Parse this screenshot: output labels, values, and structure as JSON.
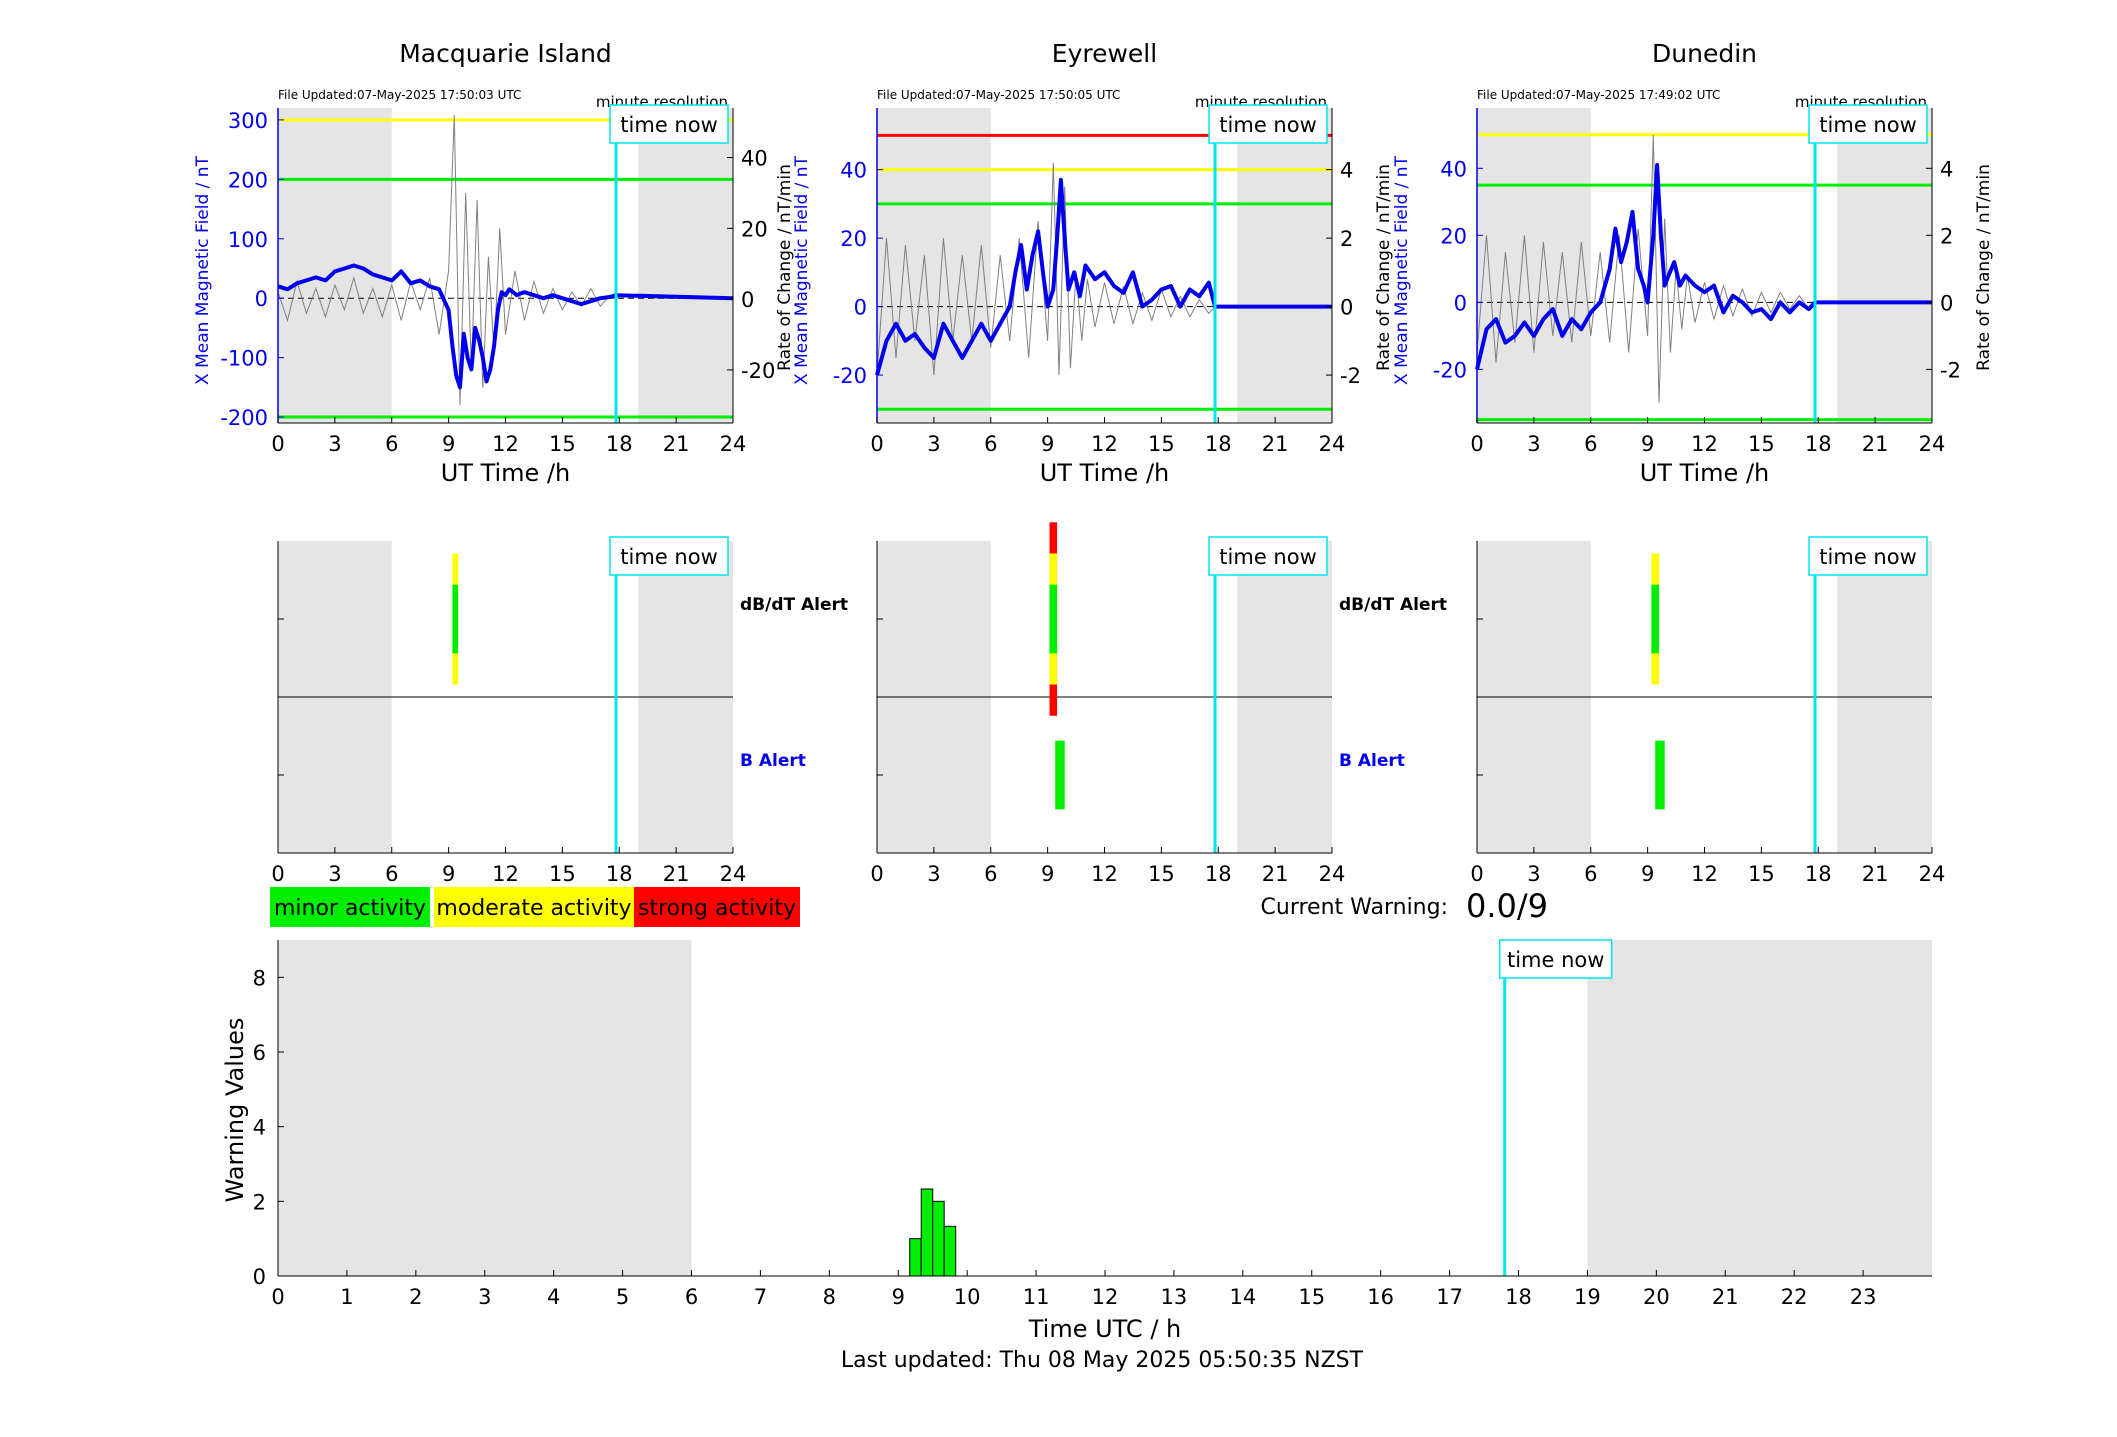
{
  "page": {
    "current_warning_label": "Current Warning:",
    "current_warning_value": "0.0/9",
    "last_updated": "Last updated: Thu 08 May 2025 05:50:35 NZST",
    "legend": [
      {
        "label": "minor activity",
        "color": "#00ee00"
      },
      {
        "label": "moderate activity",
        "color": "#ffff00"
      },
      {
        "label": "strong activity",
        "color": "#ff0000"
      }
    ],
    "time_now_label": "time now",
    "colors": {
      "field_line": "#0000ee",
      "rate_line": "#808080",
      "time_now": "#00e5ee",
      "shade": "#e5e5e5",
      "minor": "#00ee00",
      "moderate": "#ffff00",
      "strong": "#ff0000"
    }
  },
  "chart_data": [
    {
      "type": "line",
      "panel": "field",
      "station": "Macquarie Island",
      "title": "Macquarie Island",
      "file_updated": "File Updated:07-May-2025 17:50:03 UTC",
      "resolution": "minute resolution",
      "xlabel": "UT Time /h",
      "xlim": [
        0,
        24
      ],
      "xticks": [
        "0",
        "3",
        "6",
        "9",
        "12",
        "15",
        "18",
        "21",
        "24"
      ],
      "ylabel": "X Mean Magnetic Field / nT",
      "ylim": [
        -210,
        320
      ],
      "yticks": [
        "-200",
        "-100",
        "0",
        "100",
        "200",
        "300"
      ],
      "y2label": "Rate of Change / nT/min",
      "y2lim": [
        -35,
        54
      ],
      "y2ticks": [
        "-20",
        "0",
        "20",
        "40"
      ],
      "thresholds": [
        {
          "value": 300,
          "color": "#ffff00"
        },
        {
          "value": 200,
          "color": "#00ee00"
        },
        {
          "value": -200,
          "color": "#00ee00"
        }
      ],
      "shading": [
        [
          0,
          6
        ],
        [
          19,
          24
        ]
      ],
      "time_now": 17.83,
      "field_series": {
        "x": [
          0,
          0.5,
          1,
          1.5,
          2,
          2.5,
          3,
          3.5,
          4,
          4.5,
          5,
          5.5,
          6,
          6.5,
          7,
          7.5,
          8,
          8.5,
          9,
          9.2,
          9.4,
          9.6,
          9.8,
          10,
          10.2,
          10.4,
          10.6,
          10.8,
          11,
          11.2,
          11.4,
          11.6,
          11.8,
          12,
          12.2,
          12.4,
          12.6,
          12.8,
          13,
          13.5,
          14,
          14.5,
          15,
          15.5,
          16,
          16.5,
          17,
          17.5,
          17.83,
          24
        ],
        "y": [
          20,
          15,
          25,
          30,
          35,
          30,
          45,
          50,
          55,
          50,
          40,
          35,
          30,
          45,
          25,
          30,
          20,
          15,
          -20,
          -80,
          -130,
          -150,
          -60,
          -100,
          -120,
          -50,
          -70,
          -100,
          -140,
          -120,
          -80,
          -20,
          10,
          5,
          15,
          10,
          5,
          8,
          10,
          5,
          0,
          5,
          0,
          -5,
          -10,
          -5,
          0,
          2,
          5,
          0
        ]
      },
      "rate_series": {
        "x": [
          0,
          0.5,
          1,
          1.5,
          2,
          2.5,
          3,
          3.5,
          4,
          4.5,
          5,
          5.5,
          6,
          6.5,
          7,
          7.5,
          8,
          8.5,
          9,
          9.3,
          9.6,
          9.9,
          10.2,
          10.5,
          10.8,
          11.1,
          11.4,
          11.7,
          12,
          12.5,
          13,
          13.5,
          14,
          14.5,
          15,
          15.5,
          16,
          16.5,
          17,
          17.5,
          17.83
        ],
        "y": [
          2,
          -6,
          5,
          -4,
          3,
          -5,
          4,
          -3,
          6,
          -4,
          3,
          -5,
          4,
          -6,
          5,
          -3,
          6,
          -10,
          8,
          52,
          -30,
          30,
          -20,
          28,
          -25,
          12,
          -15,
          20,
          -10,
          8,
          -6,
          5,
          -4,
          3,
          -3,
          2,
          -2,
          3,
          -2,
          1,
          0
        ]
      }
    },
    {
      "type": "line",
      "panel": "field",
      "station": "Eyrewell",
      "title": "Eyrewell",
      "file_updated": "File Updated:07-May-2025 17:50:05 UTC",
      "resolution": "minute resolution",
      "xlabel": "UT Time /h",
      "xlim": [
        0,
        24
      ],
      "xticks": [
        "0",
        "3",
        "6",
        "9",
        "12",
        "15",
        "18",
        "21",
        "24"
      ],
      "ylabel": "X Mean Magnetic Field / nT",
      "ylim": [
        -34,
        58
      ],
      "yticks": [
        "-20",
        "0",
        "20",
        "40"
      ],
      "y2label": "Rate of Change / nT/min",
      "y2lim": [
        -3.4,
        5.8
      ],
      "y2ticks": [
        "-2",
        "0",
        "2",
        "4"
      ],
      "thresholds": [
        {
          "value": 50,
          "color": "#ff0000"
        },
        {
          "value": 40,
          "color": "#ffff00"
        },
        {
          "value": 30,
          "color": "#00ee00"
        },
        {
          "value": -30,
          "color": "#00ee00"
        }
      ],
      "shading": [
        [
          0,
          6
        ],
        [
          19,
          24
        ]
      ],
      "time_now": 17.83,
      "field_series": {
        "x": [
          0,
          0.5,
          1,
          1.5,
          2,
          2.5,
          3,
          3.5,
          4,
          4.5,
          5,
          5.5,
          6,
          6.5,
          7,
          7.3,
          7.6,
          7.9,
          8.2,
          8.5,
          8.8,
          9,
          9.3,
          9.5,
          9.7,
          9.9,
          10.1,
          10.4,
          10.7,
          11,
          11.5,
          12,
          12.5,
          13,
          13.5,
          14,
          14.5,
          15,
          15.5,
          16,
          16.5,
          17,
          17.5,
          17.83,
          24
        ],
        "y": [
          -20,
          -10,
          -5,
          -10,
          -8,
          -12,
          -15,
          -5,
          -10,
          -15,
          -10,
          -5,
          -10,
          -5,
          0,
          10,
          18,
          5,
          15,
          22,
          8,
          0,
          5,
          20,
          37,
          20,
          5,
          10,
          3,
          12,
          8,
          10,
          6,
          4,
          10,
          0,
          2,
          5,
          6,
          0,
          5,
          3,
          7,
          0,
          0
        ]
      },
      "rate_series": {
        "x": [
          0,
          0.5,
          1,
          1.5,
          2,
          2.5,
          3,
          3.5,
          4,
          4.5,
          5,
          5.5,
          6,
          6.5,
          7,
          7.5,
          8,
          8.5,
          9,
          9.3,
          9.6,
          9.9,
          10.2,
          10.5,
          10.8,
          11.1,
          11.5,
          12,
          12.5,
          13,
          13.5,
          14,
          14.5,
          15,
          15.5,
          16,
          16.5,
          17,
          17.5,
          17.83
        ],
        "y": [
          -2,
          2,
          -1.5,
          1.8,
          -1,
          1.5,
          -2,
          2,
          -1,
          1.5,
          -1,
          1.8,
          -1.2,
          1.5,
          -1,
          2,
          -1.5,
          2.5,
          -1,
          4.2,
          -2,
          3.5,
          -1.8,
          1,
          -1,
          0.8,
          -0.6,
          0.7,
          -0.5,
          0.6,
          -0.5,
          0.4,
          -0.4,
          0.5,
          -0.3,
          0.3,
          -0.3,
          0.2,
          -0.2,
          0
        ]
      }
    },
    {
      "type": "line",
      "panel": "field",
      "station": "Dunedin",
      "title": "Dunedin",
      "file_updated": "File Updated:07-May-2025 17:49:02 UTC",
      "resolution": "minute resolution",
      "xlabel": "UT Time /h",
      "xlim": [
        0,
        24
      ],
      "xticks": [
        "0",
        "3",
        "6",
        "9",
        "12",
        "15",
        "18",
        "21",
        "24"
      ],
      "ylabel": "X Mean Magnetic Field / nT",
      "ylim": [
        -36,
        58
      ],
      "yticks": [
        "-20",
        "0",
        "20",
        "40"
      ],
      "y2label": "Rate of Change / nT/min",
      "y2lim": [
        -3.6,
        5.8
      ],
      "y2ticks": [
        "-2",
        "0",
        "2",
        "4"
      ],
      "thresholds": [
        {
          "value": 50,
          "color": "#ffff00"
        },
        {
          "value": 35,
          "color": "#00ee00"
        },
        {
          "value": -35,
          "color": "#00ee00"
        }
      ],
      "shading": [
        [
          0,
          6
        ],
        [
          19,
          24
        ]
      ],
      "time_now": 17.83,
      "field_series": {
        "x": [
          0,
          0.5,
          1,
          1.5,
          2,
          2.5,
          3,
          3.5,
          4,
          4.5,
          5,
          5.5,
          6,
          6.5,
          7,
          7.3,
          7.6,
          7.9,
          8.2,
          8.5,
          8.8,
          9,
          9.3,
          9.5,
          9.7,
          9.9,
          10.1,
          10.4,
          10.7,
          11,
          11.5,
          12,
          12.5,
          13,
          13.5,
          14,
          14.5,
          15,
          15.5,
          16,
          16.5,
          17,
          17.5,
          17.83,
          24
        ],
        "y": [
          -20,
          -8,
          -5,
          -12,
          -10,
          -6,
          -10,
          -5,
          -2,
          -10,
          -5,
          -8,
          -3,
          0,
          10,
          22,
          12,
          18,
          27,
          10,
          5,
          0,
          20,
          41,
          20,
          5,
          8,
          12,
          5,
          8,
          5,
          3,
          5,
          -3,
          2,
          0,
          -3,
          -2,
          -5,
          0,
          -3,
          0,
          -2,
          0,
          0
        ]
      },
      "rate_series": {
        "x": [
          0,
          0.5,
          1,
          1.5,
          2,
          2.5,
          3,
          3.5,
          4,
          4.5,
          5,
          5.5,
          6,
          6.5,
          7,
          7.5,
          8,
          8.5,
          9,
          9.3,
          9.6,
          9.9,
          10.2,
          10.5,
          10.8,
          11.1,
          11.5,
          12,
          12.5,
          13,
          13.5,
          14,
          14.5,
          15,
          15.5,
          16,
          16.5,
          17,
          17.5,
          17.83
        ],
        "y": [
          -1.5,
          2,
          -1.8,
          1.5,
          -1.2,
          2,
          -1.5,
          1.8,
          -1,
          1.5,
          -1.2,
          1.8,
          -1,
          1.5,
          -1.2,
          2,
          -1.5,
          2.2,
          -1,
          5,
          -3,
          2.5,
          -1.5,
          1,
          -0.8,
          0.8,
          -0.6,
          0.6,
          -0.5,
          0.5,
          -0.4,
          0.4,
          -0.4,
          0.3,
          -0.3,
          0.3,
          -0.2,
          0.2,
          -0.2,
          0
        ]
      }
    },
    {
      "type": "heatmap",
      "panel": "alert",
      "station": "Macquarie Island",
      "xlim": [
        0,
        24
      ],
      "xticks": [
        "0",
        "3",
        "6",
        "9",
        "12",
        "15",
        "18",
        "21",
        "24"
      ],
      "rows": [
        "dB/dT Alert",
        "B Alert"
      ],
      "shading": [
        [
          0,
          6
        ],
        [
          19,
          24
        ]
      ],
      "time_now": 17.83,
      "bars": [
        {
          "row": "dB/dT Alert",
          "x0": 9.2,
          "x1": 9.5,
          "level": "moderate",
          "extent": 0.42
        },
        {
          "row": "dB/dT Alert",
          "x0": 9.2,
          "x1": 9.5,
          "level": "minor",
          "extent": 0.22
        }
      ]
    },
    {
      "type": "heatmap",
      "panel": "alert",
      "station": "Eyrewell",
      "xlim": [
        0,
        24
      ],
      "xticks": [
        "0",
        "3",
        "6",
        "9",
        "12",
        "15",
        "18",
        "21",
        "24"
      ],
      "rows": [
        "dB/dT Alert",
        "B Alert"
      ],
      "shading": [
        [
          0,
          6
        ],
        [
          19,
          24
        ]
      ],
      "time_now": 17.83,
      "bars": [
        {
          "row": "dB/dT Alert",
          "x0": 9.1,
          "x1": 9.5,
          "level": "strong",
          "extent": 0.62
        },
        {
          "row": "dB/dT Alert",
          "x0": 9.1,
          "x1": 9.5,
          "level": "moderate",
          "extent": 0.42
        },
        {
          "row": "dB/dT Alert",
          "x0": 9.1,
          "x1": 9.5,
          "level": "minor",
          "extent": 0.22
        },
        {
          "row": "B Alert",
          "x0": 9.4,
          "x1": 9.9,
          "level": "minor",
          "extent": 0.22
        }
      ]
    },
    {
      "type": "heatmap",
      "panel": "alert",
      "station": "Dunedin",
      "xlim": [
        0,
        24
      ],
      "xticks": [
        "0",
        "3",
        "6",
        "9",
        "12",
        "15",
        "18",
        "21",
        "24"
      ],
      "rows": [
        "dB/dT Alert",
        "B Alert"
      ],
      "shading": [
        [
          0,
          6
        ],
        [
          19,
          24
        ]
      ],
      "time_now": 17.83,
      "bars": [
        {
          "row": "dB/dT Alert",
          "x0": 9.2,
          "x1": 9.6,
          "level": "moderate",
          "extent": 0.42
        },
        {
          "row": "dB/dT Alert",
          "x0": 9.2,
          "x1": 9.6,
          "level": "minor",
          "extent": 0.22
        },
        {
          "row": "B Alert",
          "x0": 9.4,
          "x1": 9.9,
          "level": "minor",
          "extent": 0.22
        }
      ]
    },
    {
      "type": "bar",
      "panel": "warning",
      "xlabel": "Time UTC / h",
      "xlim": [
        0,
        24
      ],
      "xticks": [
        "0",
        "1",
        "2",
        "3",
        "4",
        "5",
        "6",
        "7",
        "8",
        "9",
        "10",
        "11",
        "12",
        "13",
        "14",
        "15",
        "16",
        "17",
        "18",
        "19",
        "20",
        "21",
        "22",
        "23"
      ],
      "ylabel": "Warning Values",
      "ylim": [
        0,
        9
      ],
      "yticks": [
        "0",
        "2",
        "4",
        "6",
        "8"
      ],
      "shading": [
        [
          0,
          6
        ],
        [
          19,
          24
        ]
      ],
      "time_now": 17.8,
      "bar_width": 0.167,
      "x": [
        9.25,
        9.417,
        9.583,
        9.75
      ],
      "values": [
        1.0,
        2.33,
        2.0,
        1.33
      ]
    }
  ]
}
